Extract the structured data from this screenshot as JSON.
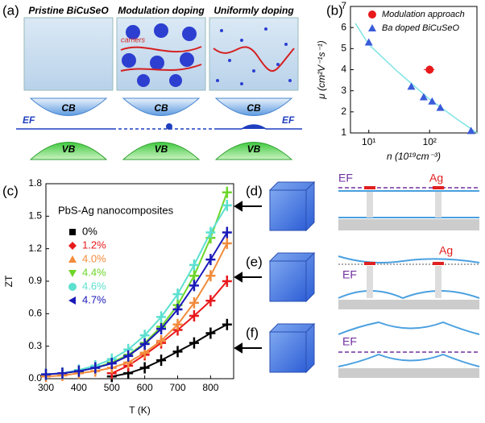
{
  "chart_data": [
    {
      "type": "scatter",
      "label": "(b)",
      "xscale": "log",
      "xlabel": "n (10¹⁹cm⁻³)",
      "ylabel": "μ (cm²V⁻¹s⁻¹)",
      "xlim": [
        5,
        600
      ],
      "xticks": [
        {
          "value": 10,
          "label": "10¹"
        },
        {
          "value": 100,
          "label": "10²"
        }
      ],
      "ylim": [
        1,
        7
      ],
      "yticks": [
        1,
        2,
        3,
        4,
        5,
        6,
        7
      ],
      "legend": "upper right",
      "series": [
        {
          "name": "Modulation approach",
          "color": "#e8191b",
          "marker": "circle",
          "x": [
            100
          ],
          "values": [
            4.0
          ],
          "xerr": [
            20
          ],
          "yerr": [
            0.2
          ]
        },
        {
          "name": "Ba doped BiCuSeO",
          "color": "#3a5bd9",
          "marker": "triangle",
          "x": [
            10,
            50,
            80,
            110,
            150,
            480
          ],
          "values": [
            5.3,
            3.2,
            2.7,
            2.5,
            2.2,
            1.1
          ]
        }
      ],
      "fit": {
        "color": "#7fe3e3",
        "x": [
          6,
          10,
          30,
          100,
          300,
          600
        ],
        "values": [
          6.2,
          5.2,
          3.9,
          2.6,
          1.6,
          1.0
        ]
      }
    },
    {
      "type": "line",
      "label": "(c)",
      "xlabel": "T (K)",
      "ylabel": "ZT",
      "legend_title": "PbS-Ag nanocomposites",
      "legend": "upper left",
      "xlim": [
        300,
        870
      ],
      "xticks": [
        300,
        400,
        500,
        600,
        700,
        800
      ],
      "ylim": [
        0,
        1.8
      ],
      "yticks": [
        {
          "value": 0,
          "label": "0.0"
        },
        0.3,
        0.6,
        0.9,
        1.2,
        1.5,
        1.8
      ],
      "x": [
        300,
        350,
        400,
        450,
        500,
        550,
        600,
        650,
        700,
        750,
        800,
        850
      ],
      "series": [
        {
          "name": "0%",
          "color": "#000000",
          "marker": "square",
          "values": [
            null,
            null,
            null,
            null,
            0.02,
            0.05,
            0.1,
            0.17,
            0.25,
            0.33,
            0.42,
            0.5
          ]
        },
        {
          "name": "1.2%",
          "color": "#e8191b",
          "marker": "diamond",
          "values": [
            null,
            null,
            null,
            null,
            0.05,
            0.12,
            0.22,
            0.33,
            0.45,
            0.58,
            0.72,
            0.9
          ]
        },
        {
          "name": "4.0%",
          "color": "#f28c3c",
          "marker": "triangle",
          "values": [
            0.02,
            0.03,
            0.05,
            0.07,
            0.1,
            0.15,
            0.24,
            0.35,
            0.5,
            0.7,
            0.95,
            1.25
          ]
        },
        {
          "name": "4.4%",
          "color": "#6dd629",
          "marker": "triangle-down",
          "values": [
            0.04,
            0.05,
            0.07,
            0.1,
            0.15,
            0.22,
            0.33,
            0.48,
            0.68,
            0.95,
            1.3,
            1.72
          ]
        },
        {
          "name": "4.6%",
          "color": "#5ce0d0",
          "marker": "circle",
          "values": [
            0.04,
            0.05,
            0.08,
            0.12,
            0.18,
            0.27,
            0.4,
            0.57,
            0.78,
            1.05,
            1.35,
            1.6
          ]
        },
        {
          "name": "4.7%",
          "color": "#1a1ab8",
          "marker": "triangle-left",
          "values": [
            0.04,
            0.05,
            0.07,
            0.1,
            0.14,
            0.21,
            0.32,
            0.46,
            0.64,
            0.86,
            1.1,
            1.35
          ]
        }
      ]
    }
  ],
  "diagrams": {
    "panel_a": {
      "label": "(a)",
      "titles": [
        "Pristine BiCuSeO",
        "Modulation doping",
        "Uniformly doping"
      ],
      "carriers": "carriers",
      "cb": [
        "CB",
        "CB",
        "CB"
      ],
      "vb": [
        "VB",
        "VB",
        "VB"
      ],
      "ef": [
        "EF",
        "EF"
      ]
    },
    "panel_d": {
      "label": "(d)",
      "ef": "EF",
      "ag": "Ag"
    },
    "panel_e": {
      "label": "(e)",
      "ef": "EF",
      "ag": "Ag"
    },
    "panel_f": {
      "label": "(f)",
      "ef": "EF"
    }
  }
}
